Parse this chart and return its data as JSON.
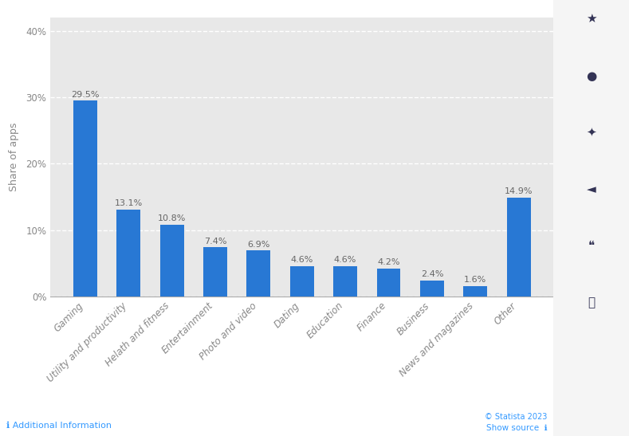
{
  "categories": [
    "Gaming",
    "Utility and productivity",
    "Helath and fitness",
    "Entertainment",
    "Photo and video",
    "Dating",
    "Education",
    "Finance",
    "Business",
    "News and magazines",
    "Other"
  ],
  "values": [
    29.5,
    13.1,
    10.8,
    7.4,
    6.9,
    4.6,
    4.6,
    4.2,
    2.4,
    1.6,
    14.9
  ],
  "bar_color": "#2878d4",
  "ylabel": "Share of apps",
  "ylim": [
    0,
    42
  ],
  "yticks": [
    0,
    10,
    20,
    30,
    40
  ],
  "ytick_labels": [
    "0%",
    "10%",
    "20%",
    "30%",
    "40%"
  ],
  "background_color": "#ffffff",
  "plot_bg_color": "#e8e8e8",
  "tick_label_color": "#888888",
  "bar_label_color": "#666666",
  "label_fontsize": 8.5,
  "bar_label_fontsize": 8.0,
  "ylabel_fontsize": 9,
  "grid_color": "#ffffff",
  "grid_linewidth": 1.0,
  "bar_width": 0.55,
  "footer_text_left": "ℹ Additional Information",
  "footer_text_right": "© Statista 2023    Show source ℹ",
  "footer_color": "#3399ff"
}
